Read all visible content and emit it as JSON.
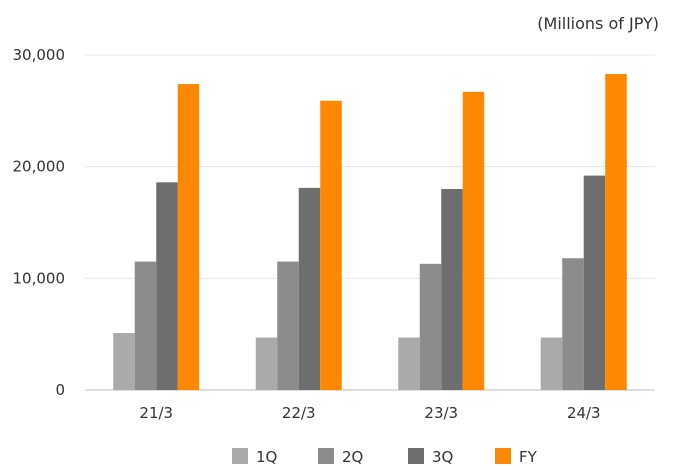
{
  "chart_data": {
    "type": "bar",
    "unit_label": "(Millions of JPY)",
    "categories": [
      "21/3",
      "22/3",
      "23/3",
      "24/3"
    ],
    "series": [
      {
        "name": "1Q",
        "color": "#aaaaaa",
        "values": [
          5100,
          4700,
          4700,
          4700
        ]
      },
      {
        "name": "2Q",
        "color": "#8c8c8c",
        "values": [
          11500,
          11500,
          11300,
          11800
        ]
      },
      {
        "name": "3Q",
        "color": "#6e6e6e",
        "values": [
          18600,
          18100,
          18000,
          19200
        ]
      },
      {
        "name": "FY",
        "color": "#ff8800",
        "values": [
          27400,
          25900,
          26700,
          28300
        ]
      }
    ],
    "ylim": [
      0,
      30000
    ],
    "yticks": [
      0,
      10000,
      20000,
      30000
    ],
    "ytick_labels": [
      "0",
      "10,000",
      "20,000",
      "30,000"
    ],
    "grid": true,
    "legend_position": "bottom"
  }
}
